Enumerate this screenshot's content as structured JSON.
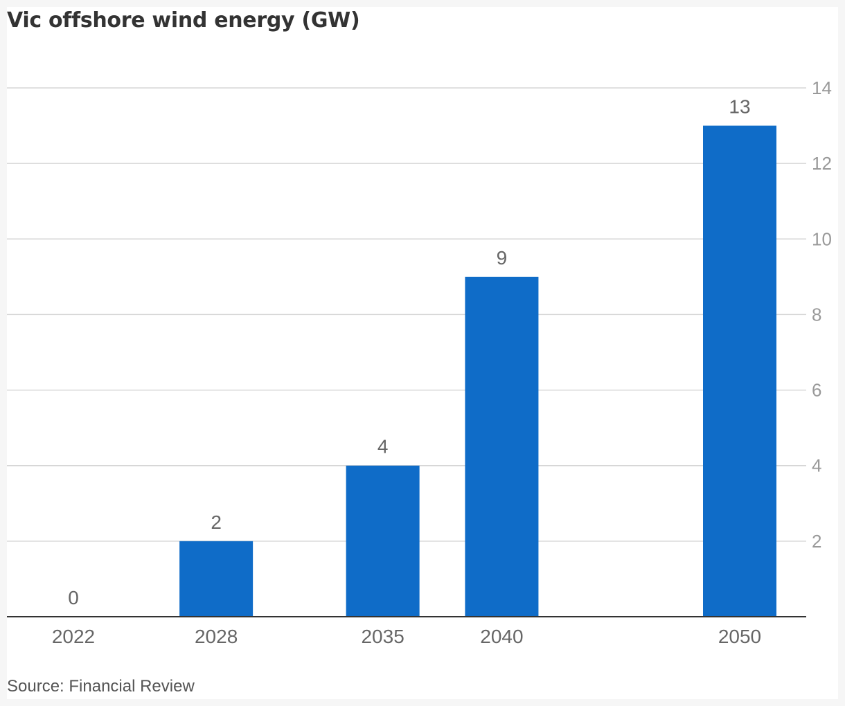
{
  "chart_data": {
    "type": "bar",
    "title": "Vic offshore wind energy (GW)",
    "categories": [
      "2022",
      "2028",
      "2035",
      "2040",
      "2050"
    ],
    "x": [
      2022,
      2028,
      2035,
      2040,
      2050
    ],
    "values": [
      0,
      2,
      4,
      9,
      13
    ],
    "data_labels": [
      "0",
      "2",
      "4",
      "9",
      "13"
    ],
    "y_ticks": [
      2,
      4,
      6,
      8,
      10,
      12,
      14
    ],
    "y_tick_labels": [
      "2",
      "4",
      "6",
      "8",
      "10",
      "12",
      "14"
    ],
    "ylim": [
      0,
      14
    ],
    "y_axis_side": "right",
    "grid": true,
    "xlabel": "",
    "ylabel": "",
    "bar_color": "#0f6cc8"
  },
  "source": "Source: Financial Review"
}
